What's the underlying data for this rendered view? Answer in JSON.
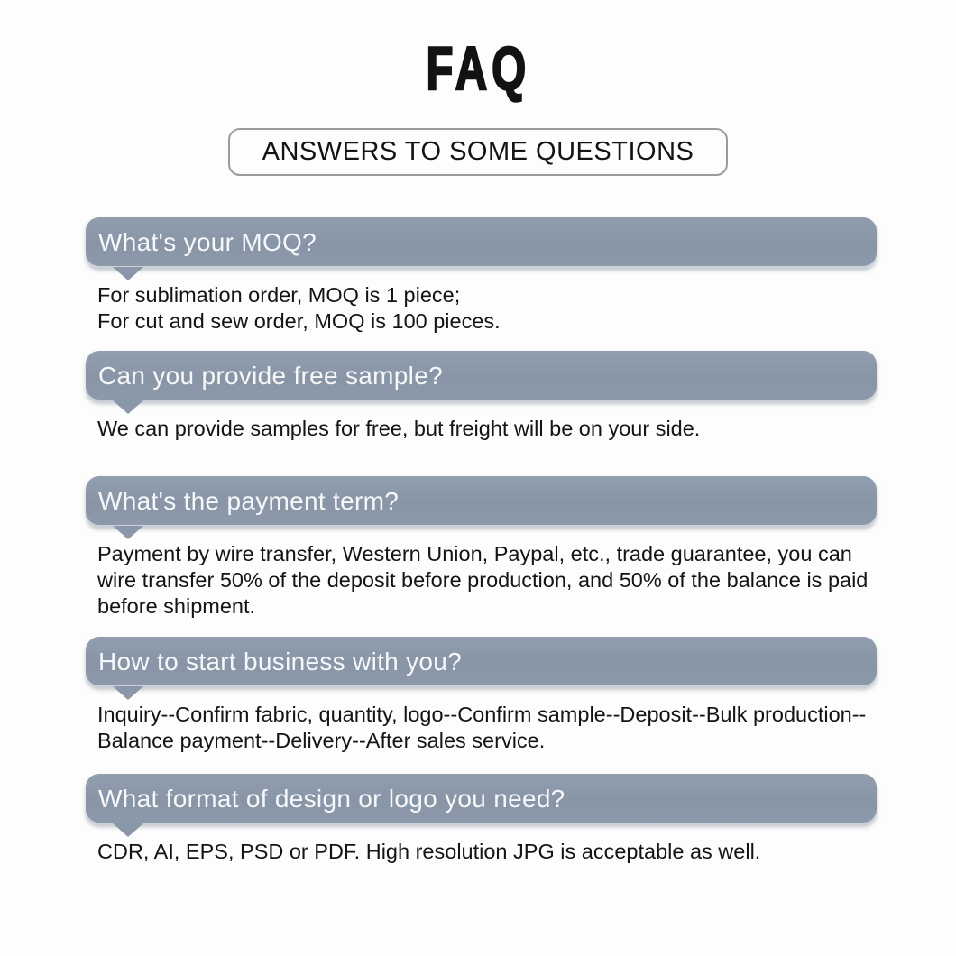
{
  "page": {
    "title": "FAQ",
    "subtitle": "ANSWERS TO SOME QUESTIONS"
  },
  "colors": {
    "page_background": "#fdfdfd",
    "bar_background": "#8997a8",
    "question_text": "#f6f7f8",
    "answer_text": "#141414",
    "subtitle_border": "#9b9b9b",
    "title_text": "#121212"
  },
  "faq": {
    "items": [
      {
        "question": "What's your MOQ?",
        "answer": "For sublimation order, MOQ is 1 piece;\nFor cut and sew order, MOQ is 100 pieces."
      },
      {
        "question": "Can you provide free sample?",
        "answer": "We can provide samples for free, but freight will be on your side."
      },
      {
        "question": "What's the payment term?",
        "answer": "Payment by wire transfer, Western Union, Paypal, etc., trade guarantee, you can\nwire transfer 50% of the deposit before production, and 50% of the balance is paid\nbefore shipment."
      },
      {
        "question": "How to start business with you?",
        "answer": "Inquiry--Confirm fabric, quantity, logo--Confirm sample--Deposit--Bulk production--\nBalance payment--Delivery--After sales service."
      },
      {
        "question": "What format of design or logo you need?",
        "answer": "CDR, AI, EPS, PSD or PDF. High resolution JPG is acceptable as well."
      }
    ]
  }
}
